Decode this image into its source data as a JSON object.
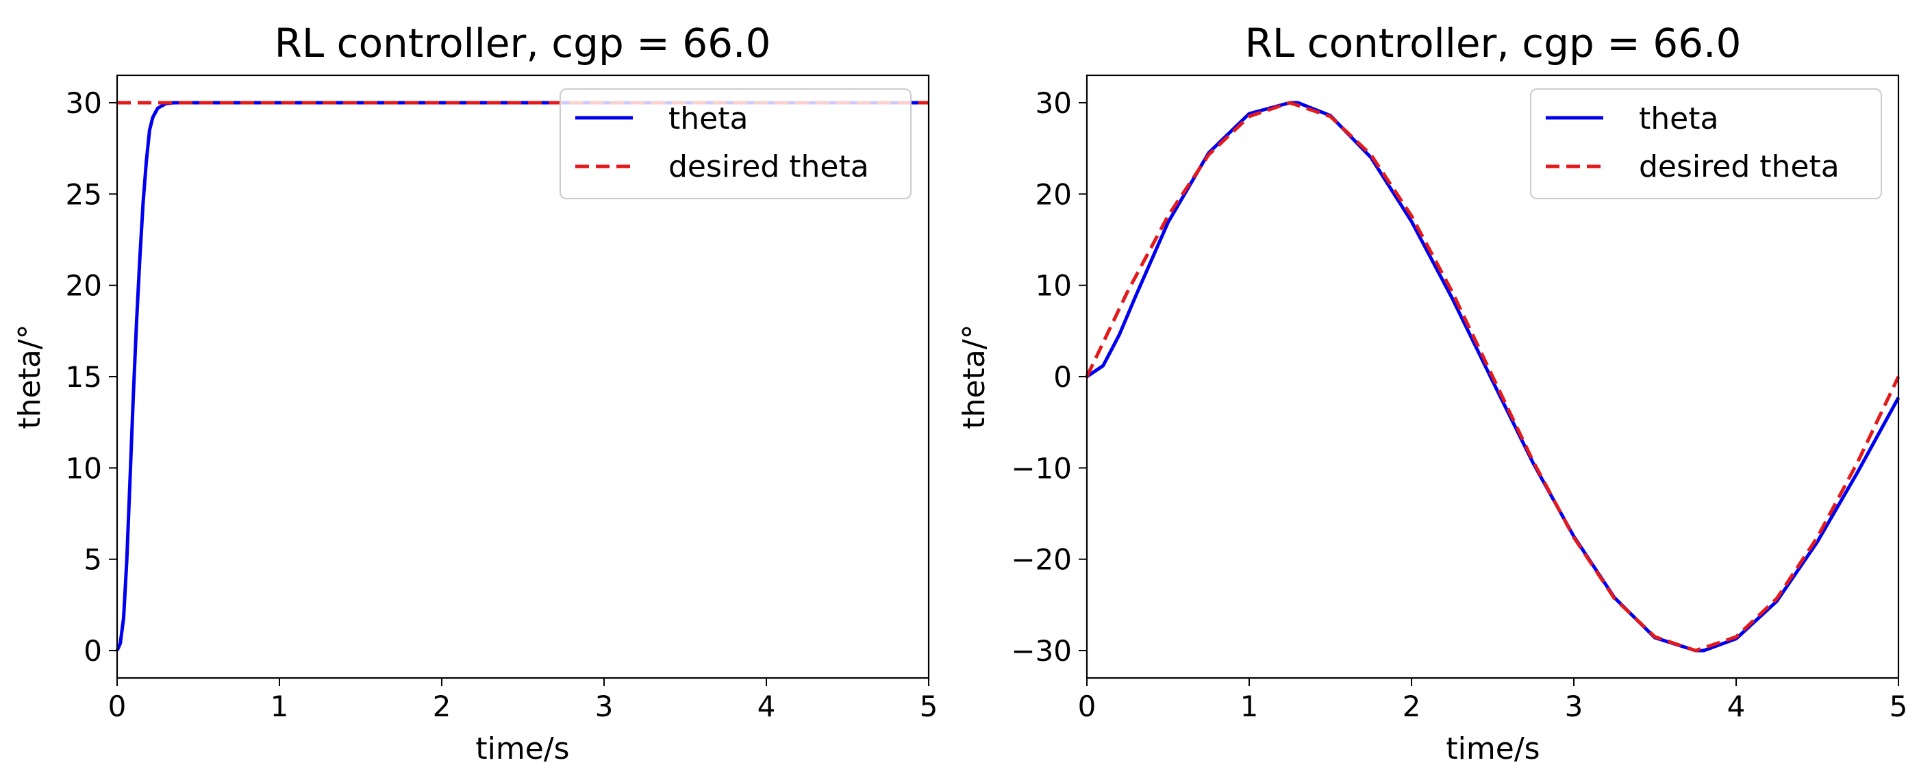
{
  "colors": {
    "theta": "#0000ee",
    "desired": "#e31a1c",
    "axes": "#000000",
    "legend_border": "#cccccc"
  },
  "chart_data": [
    {
      "type": "line",
      "title": "RL controller, cgp = 66.0",
      "xlabel": "time/s",
      "ylabel": "theta/°",
      "xlim": [
        0,
        5
      ],
      "ylim": [
        -1.5,
        31.5
      ],
      "xticks": [
        0,
        1,
        2,
        3,
        4,
        5
      ],
      "xtick_labels": [
        "0",
        "1",
        "2",
        "3",
        "4",
        "5"
      ],
      "yticks": [
        0,
        5,
        10,
        15,
        20,
        25,
        30
      ],
      "ytick_labels": [
        "0",
        "5",
        "10",
        "15",
        "20",
        "25",
        "30"
      ],
      "grid": false,
      "legend_position": "top-right",
      "series": [
        {
          "name": "theta",
          "style": "solid",
          "x": [
            0,
            0.02,
            0.04,
            0.06,
            0.08,
            0.1,
            0.12,
            0.14,
            0.16,
            0.18,
            0.2,
            0.22,
            0.25,
            0.3,
            0.35,
            0.4,
            0.5,
            1,
            2,
            3,
            4,
            5
          ],
          "y": [
            0,
            0.4,
            1.8,
            5,
            9.5,
            14,
            18,
            21.5,
            24.5,
            26.8,
            28.5,
            29.2,
            29.7,
            29.95,
            30,
            30,
            30,
            30,
            30,
            30,
            30,
            30
          ]
        },
        {
          "name": "desired theta",
          "style": "dashed",
          "x": [
            0,
            5
          ],
          "y": [
            30,
            30
          ]
        }
      ]
    },
    {
      "type": "line",
      "title": "RL controller, cgp = 66.0",
      "xlabel": "time/s",
      "ylabel": "theta/°",
      "xlim": [
        0,
        5
      ],
      "ylim": [
        -33,
        33
      ],
      "xticks": [
        0,
        1,
        2,
        3,
        4,
        5
      ],
      "xtick_labels": [
        "0",
        "1",
        "2",
        "3",
        "4",
        "5"
      ],
      "yticks": [
        -30,
        -20,
        -10,
        0,
        10,
        20,
        30
      ],
      "ytick_labels": [
        "−30",
        "−20",
        "−10",
        "0",
        "10",
        "20",
        "30"
      ],
      "grid": false,
      "legend_position": "top-right",
      "series": [
        {
          "name": "theta",
          "style": "solid",
          "x": [
            0,
            0.1,
            0.2,
            0.3,
            0.5,
            0.75,
            1.0,
            1.25,
            1.3,
            1.5,
            1.75,
            2.0,
            2.25,
            2.5,
            2.75,
            3.0,
            3.25,
            3.5,
            3.75,
            3.8,
            4.0,
            4.25,
            4.5,
            4.75,
            5.0
          ],
          "y": [
            0,
            1.2,
            4.6,
            8.8,
            16.9,
            24.5,
            28.8,
            30.0,
            30.0,
            28.6,
            24.0,
            17.0,
            8.6,
            -0.5,
            -9.5,
            -17.5,
            -24.2,
            -28.6,
            -30.0,
            -30.0,
            -28.7,
            -24.6,
            -18.1,
            -10.4,
            -2.3
          ]
        },
        {
          "name": "desired theta",
          "style": "dashed",
          "x": [
            0,
            0.25,
            0.5,
            0.75,
            1.0,
            1.25,
            1.5,
            1.75,
            2.0,
            2.25,
            2.5,
            2.75,
            3.0,
            3.25,
            3.5,
            3.75,
            4.0,
            4.25,
            4.5,
            4.75,
            5.0
          ],
          "y": [
            0,
            9.3,
            17.6,
            24.3,
            28.5,
            30.0,
            28.5,
            24.3,
            17.6,
            9.3,
            0,
            -9.3,
            -17.6,
            -24.3,
            -28.5,
            -30.0,
            -28.5,
            -24.3,
            -17.6,
            -9.3,
            0
          ]
        }
      ]
    }
  ]
}
